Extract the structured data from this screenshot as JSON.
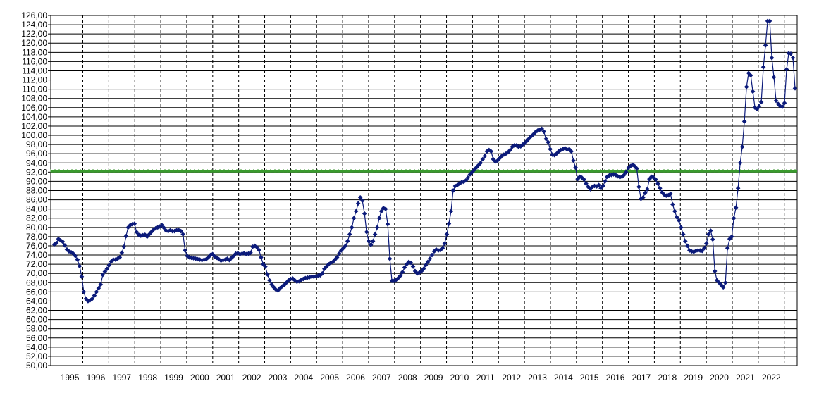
{
  "chart_data": {
    "type": "line",
    "title": "",
    "xlabel": "",
    "ylabel": "",
    "ylim": [
      50,
      126
    ],
    "y_ticks": [
      "50,00",
      "52,00",
      "54,00",
      "56,00",
      "58,00",
      "60,00",
      "62,00",
      "64,00",
      "66,00",
      "68,00",
      "70,00",
      "72,00",
      "74,00",
      "76,00",
      "78,00",
      "80,00",
      "82,00",
      "84,00",
      "86,00",
      "88,00",
      "90,00",
      "92,00",
      "94,00",
      "96,00",
      "98,00",
      "100,00",
      "102,00",
      "104,00",
      "106,00",
      "108,00",
      "110,00",
      "112,00",
      "114,00",
      "116,00",
      "118,00",
      "120,00",
      "122,00",
      "124,00",
      "126,00"
    ],
    "x_ticks": [
      "1995",
      "1996",
      "1997",
      "1998",
      "1999",
      "2000",
      "2001",
      "2002",
      "2003",
      "2004",
      "2005",
      "2006",
      "2007",
      "2008",
      "2009",
      "2010",
      "2011",
      "2012",
      "2013",
      "2014",
      "2015",
      "2016",
      "2017",
      "2018",
      "2019",
      "2020",
      "2021",
      "2022"
    ],
    "grid": true,
    "legend": "none",
    "reference_line": {
      "value": 92.2,
      "color": "#3a9a2e"
    },
    "series_color": "#0b1a7a",
    "series": [
      {
        "values": [
          76.3,
          76.6,
          77.5,
          77.2,
          76.9,
          76.1,
          75.2,
          74.8,
          74.6,
          74.3,
          73.8,
          73.0,
          71.6,
          69.3,
          66.0,
          64.5,
          64.0,
          64.2,
          64.5,
          65.2,
          66.0,
          66.8,
          67.6,
          69.7,
          70.4,
          71.0,
          71.8,
          72.6,
          73.0,
          73.0,
          73.2,
          73.5,
          74.5,
          75.8,
          78.1,
          80.0,
          80.5,
          80.7,
          80.8,
          79.0,
          78.4,
          78.2,
          78.3,
          78.4,
          78.0,
          78.5,
          79.0,
          79.5,
          79.8,
          80.0,
          80.2,
          80.5,
          79.9,
          79.3,
          79.2,
          79.4,
          79.2,
          79.2,
          79.4,
          79.4,
          79.2,
          78.5,
          75.0,
          73.8,
          73.5,
          73.4,
          73.3,
          73.2,
          73.1,
          73.0,
          72.9,
          73.0,
          73.1,
          73.5,
          74.0,
          74.2,
          73.7,
          73.4,
          73.1,
          72.8,
          72.9,
          73.0,
          73.2,
          72.9,
          73.4,
          73.8,
          74.3,
          74.4,
          74.2,
          74.3,
          74.4,
          74.2,
          74.3,
          74.5,
          75.8,
          76.0,
          75.7,
          75.1,
          73.5,
          72.0,
          71.5,
          69.8,
          68.5,
          67.6,
          67.0,
          66.5,
          66.3,
          66.8,
          67.2,
          67.5,
          68.0,
          68.5,
          68.8,
          68.9,
          68.5,
          68.2,
          68.3,
          68.6,
          68.8,
          69.0,
          69.1,
          69.2,
          69.3,
          69.3,
          69.4,
          69.5,
          69.6,
          70.0,
          71.0,
          71.5,
          72.0,
          72.3,
          72.5,
          73.0,
          73.5,
          74.3,
          75.0,
          75.5,
          76.0,
          77.0,
          78.5,
          80.0,
          82.0,
          83.5,
          85.2,
          86.5,
          85.8,
          83.0,
          79.0,
          77.0,
          76.2,
          77.0,
          78.5,
          80.0,
          82.0,
          83.5,
          84.2,
          84.0,
          80.7,
          73.2,
          68.4,
          68.4,
          68.6,
          69.0,
          69.5,
          70.3,
          71.3,
          72.0,
          72.5,
          72.3,
          71.5,
          70.5,
          70.0,
          70.2,
          70.5,
          71.0,
          71.8,
          72.5,
          73.2,
          74.0,
          74.8,
          75.2,
          75.0,
          75.1,
          75.5,
          76.5,
          78.5,
          80.8,
          83.5,
          88.0,
          89.0,
          89.2,
          89.5,
          89.8,
          89.9,
          90.2,
          90.8,
          91.5,
          92.0,
          92.5,
          93.0,
          93.5,
          94.0,
          94.8,
          95.5,
          96.5,
          96.8,
          96.5,
          94.8,
          94.3,
          94.5,
          95.0,
          95.5,
          95.8,
          96.0,
          96.3,
          96.8,
          97.5,
          97.8,
          97.8,
          97.5,
          97.6,
          98.0,
          98.3,
          98.8,
          99.3,
          99.8,
          100.2,
          100.7,
          101.0,
          101.2,
          101.4,
          100.8,
          99.2,
          98.5,
          97.0,
          95.8,
          95.7,
          96.0,
          96.5,
          96.8,
          97.0,
          97.2,
          96.9,
          97.0,
          96.5,
          94.5,
          93.0,
          90.5,
          91.0,
          90.8,
          90.4,
          89.5,
          88.8,
          88.3,
          88.8,
          89.0,
          88.9,
          89.2,
          88.5,
          89.0,
          90.0,
          91.0,
          91.3,
          91.4,
          91.5,
          91.4,
          91.1,
          90.9,
          91.0,
          91.4,
          92.0,
          92.9,
          93.3,
          93.6,
          93.3,
          92.8,
          88.8,
          86.2,
          86.5,
          87.5,
          88.3,
          90.5,
          91.0,
          90.8,
          90.4,
          89.5,
          88.5,
          87.6,
          87.1,
          86.9,
          87.0,
          87.3,
          85.0,
          83.5,
          82.2,
          81.5,
          80.0,
          78.5,
          77.0,
          76.0,
          75.0,
          74.8,
          74.7,
          74.9,
          75.0,
          75.0,
          74.9,
          75.5,
          76.5,
          78.5,
          79.3,
          77.4,
          70.5,
          68.5,
          68.0,
          67.5,
          67.0,
          68.0,
          75.5,
          77.5,
          78.0,
          82.0,
          84.3,
          88.5,
          94.0,
          97.5,
          103.0,
          110.5,
          113.5,
          113.0,
          109.5,
          106.0,
          105.7,
          106.3,
          107.2,
          114.8,
          119.5,
          124.8,
          124.8,
          116.8,
          112.6,
          107.5,
          106.8,
          106.3,
          106.2,
          107.0,
          114.3,
          117.8,
          117.7,
          116.8,
          110.2
        ]
      }
    ]
  }
}
